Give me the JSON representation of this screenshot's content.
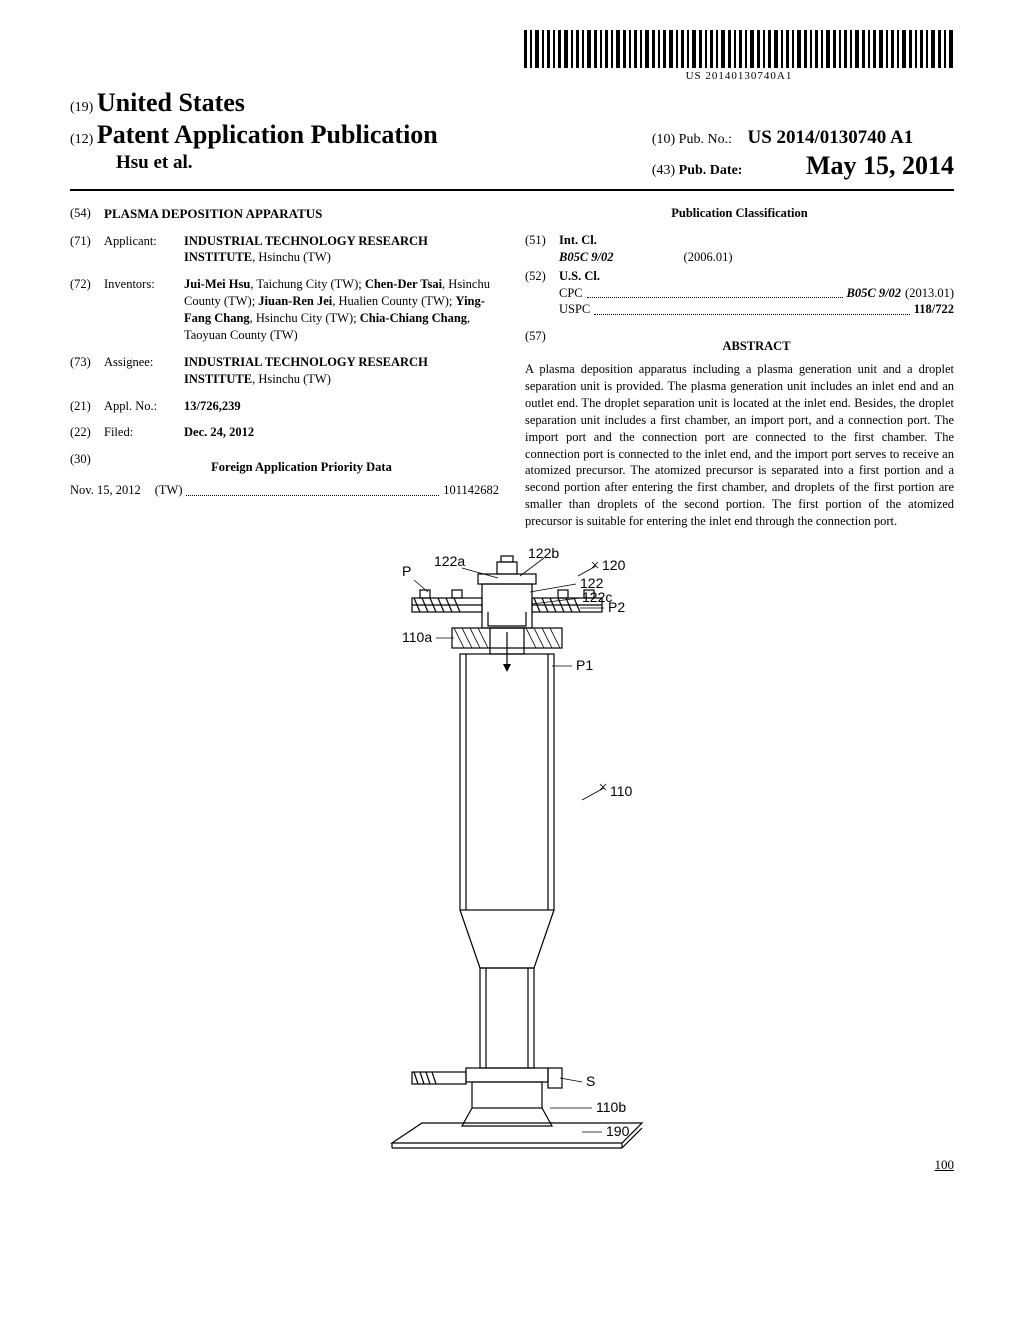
{
  "barcode_text": "US 20140130740A1",
  "header": {
    "line1_num": "(19)",
    "line1_text": "United States",
    "line2_num": "(12)",
    "line2_text": "Patent Application Publication",
    "author": "Hsu et al.",
    "pubno_num": "(10)",
    "pubno_label": "Pub. No.:",
    "pubno_value": "US 2014/0130740 A1",
    "pubdate_num": "(43)",
    "pubdate_label": "Pub. Date:",
    "pubdate_value": "May 15, 2014"
  },
  "left_col": {
    "title_num": "(54)",
    "title": "PLASMA DEPOSITION APPARATUS",
    "applicant_num": "(71)",
    "applicant_label": "Applicant:",
    "applicant_value": "INDUSTRIAL TECHNOLOGY RESEARCH INSTITUTE",
    "applicant_loc": ", Hsinchu (TW)",
    "inventors_num": "(72)",
    "inventors_label": "Inventors:",
    "inventors": [
      {
        "name": "Jui-Mei Hsu",
        "loc": ", Taichung City (TW);"
      },
      {
        "name": "Chen-Der Tsai",
        "loc": ", Hsinchu County (TW);"
      },
      {
        "name": "Jiuan-Ren Jei",
        "loc": ", Hualien County (TW);"
      },
      {
        "name": "Ying-Fang Chang",
        "loc": ", Hsinchu City (TW);"
      },
      {
        "name": "Chia-Chiang Chang",
        "loc": ", Taoyuan County (TW)"
      }
    ],
    "assignee_num": "(73)",
    "assignee_label": "Assignee:",
    "assignee_value": "INDUSTRIAL TECHNOLOGY RESEARCH INSTITUTE",
    "assignee_loc": ", Hsinchu (TW)",
    "appl_num": "(21)",
    "appl_label": "Appl. No.:",
    "appl_value": "13/726,239",
    "filed_num": "(22)",
    "filed_label": "Filed:",
    "filed_value": "Dec. 24, 2012",
    "foreign_num": "(30)",
    "foreign_title": "Foreign Application Priority Data",
    "foreign_date": "Nov. 15, 2012",
    "foreign_country": "(TW)",
    "foreign_appno": "101142682"
  },
  "right_col": {
    "classif_title": "Publication Classification",
    "intcl_num": "(51)",
    "intcl_label": "Int. Cl.",
    "intcl_code": "B05C 9/02",
    "intcl_year": "(2006.01)",
    "uscl_num": "(52)",
    "uscl_label": "U.S. Cl.",
    "cpc_label": "CPC",
    "cpc_value": "B05C 9/02",
    "cpc_year": "(2013.01)",
    "uspc_label": "USPC",
    "uspc_value": "118/722",
    "abstract_num": "(57)",
    "abstract_title": "ABSTRACT",
    "abstract_text": "A plasma deposition apparatus including a plasma generation unit and a droplet separation unit is provided. The plasma generation unit includes an inlet end and an outlet end. The droplet separation unit is located at the inlet end. Besides, the droplet separation unit includes a first chamber, an import port, and a connection port. The import port and the connection port are connected to the first chamber. The connection port is connected to the inlet end, and the import port serves to receive an atomized precursor. The atomized precursor is separated into a first portion and a second portion after entering the first chamber, and droplets of the first portion are smaller than droplets of the second portion. The first portion of the atomized precursor is suitable for entering the inlet end through the connection port."
  },
  "figure": {
    "labels": {
      "P": "P",
      "122a": "122a",
      "122b": "122b",
      "120": "120",
      "122": "122",
      "122c": "122c",
      "P2": "P2",
      "110a": "110a",
      "P1": "P1",
      "110": "110",
      "S": "S",
      "110b": "110b",
      "190": "190",
      "100": "100"
    },
    "colors": {
      "stroke": "#000000",
      "bg": "#ffffff"
    }
  }
}
